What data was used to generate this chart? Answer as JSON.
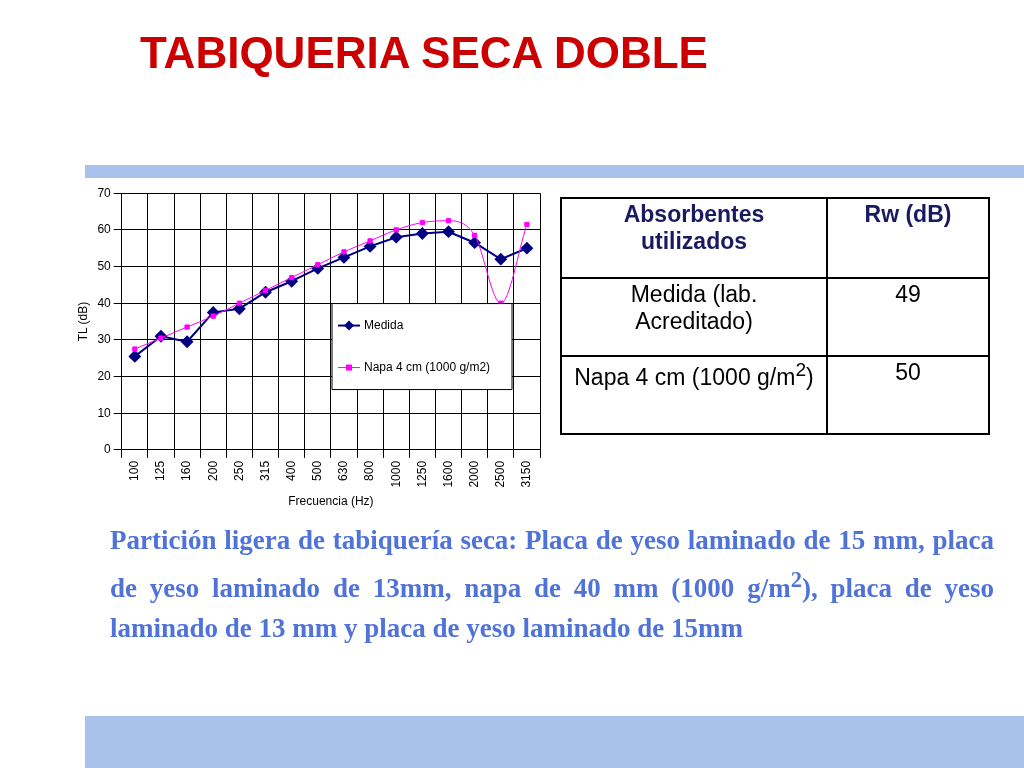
{
  "chart_data": [
    {
      "type": "line",
      "title": "TABIQUERIA SECA DOBLE",
      "xlabel": "Frecuencia (Hz)",
      "ylabel": "TL (dB)",
      "categories": [
        "100",
        "125",
        "160",
        "200",
        "250",
        "315",
        "400",
        "500",
        "630",
        "800",
        "1000",
        "1250",
        "1600",
        "2000",
        "2500",
        "3150"
      ],
      "series": [
        {
          "name": "Medida",
          "color": "#000080",
          "marker": "diamond",
          "values": [
            25.5,
            31,
            29.5,
            37.5,
            38.5,
            43,
            46,
            49.5,
            52.5,
            55.5,
            58,
            59,
            59.5,
            56.5,
            52,
            55
          ]
        },
        {
          "name": "Napa 4 cm (1000 g/m2)",
          "color": "#ff00ff",
          "marker": "square",
          "values": [
            27.5,
            30.5,
            33.5,
            36.5,
            40,
            43.5,
            47,
            50.5,
            54,
            57,
            60,
            62,
            62.5,
            58.5,
            40,
            61.5
          ]
        }
      ],
      "ylim": [
        0,
        70
      ],
      "yticks": [
        0,
        10,
        20,
        30,
        40,
        50,
        60,
        70
      ],
      "grid": true,
      "legend": "right",
      "annotations": [
        "Partición ligera de tabiquería seca: Placa de yeso laminado de 15 mm, placa de yeso laminado de 13mm, napa de 40 mm (1000 g/m$^{2}$), placa de yeso laminado de 13 mm y placa de yeso laminado de 15mm"
      ]
    },
    {
      "type": "other",
      "annotations": [
        "Absorbentes utilizados",
        "Rw (dB)",
        "Medida (lab. Acreditado)",
        "49",
        "Napa 4 cm (1000 g/m$^{2}$)",
        "50"
      ]
    }
  ]
}
